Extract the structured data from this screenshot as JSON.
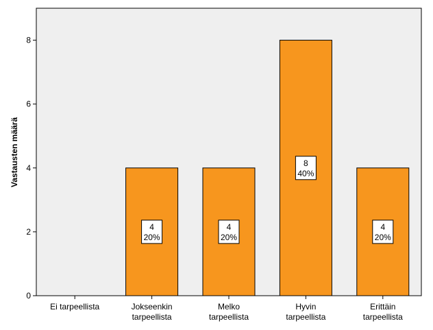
{
  "chart_data": {
    "type": "bar",
    "title": "",
    "xlabel": "",
    "ylabel": "Vastausten määrä",
    "ylim": [
      0,
      9
    ],
    "yticks": [
      "0",
      "2",
      "4",
      "6",
      "8"
    ],
    "ytick_values": [
      0,
      2,
      4,
      6,
      8
    ],
    "categories": [
      [
        "Ei tarpeellista"
      ],
      [
        "Jokseenkin",
        "tarpeellista"
      ],
      [
        "Melko",
        "tarpeellista"
      ],
      [
        "Hyvin",
        "tarpeellista"
      ],
      [
        "Erittäin",
        "tarpeellista"
      ]
    ],
    "values": [
      0,
      4,
      4,
      8,
      4
    ],
    "data_labels": [
      null,
      [
        "4",
        "20%"
      ],
      [
        "4",
        "20%"
      ],
      [
        "8",
        "40%"
      ],
      [
        "4",
        "20%"
      ]
    ],
    "colors": {
      "bar": "#f7961e",
      "plot_bg": "#efefef",
      "bar_border": "#000000",
      "label_box": "#ffffff"
    },
    "grid": false,
    "legend": false
  }
}
